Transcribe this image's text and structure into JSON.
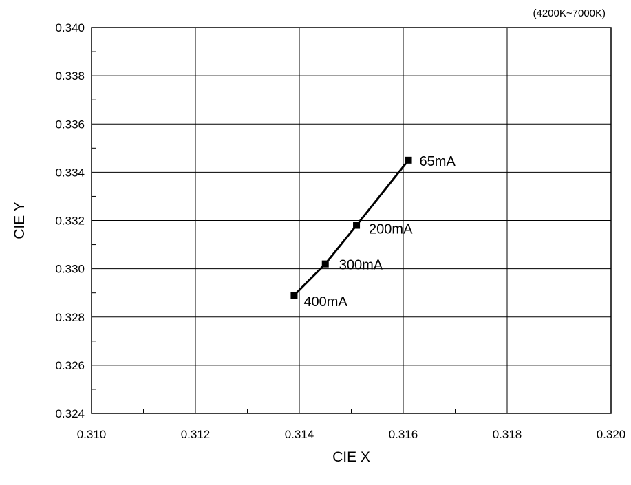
{
  "chart_data": {
    "type": "line",
    "subtitle": "(4200K~7000K)",
    "xlabel": "CIE X",
    "ylabel": "CIE Y",
    "xlim": [
      0.31,
      0.32
    ],
    "ylim": [
      0.324,
      0.34
    ],
    "xticks": [
      "0.310",
      "0.312",
      "0.314",
      "0.316",
      "0.318",
      "0.320"
    ],
    "yticks": [
      "0.324",
      "0.326",
      "0.328",
      "0.330",
      "0.332",
      "0.334",
      "0.336",
      "0.338",
      "0.340"
    ],
    "grid": true,
    "series": [
      {
        "color": "#000000",
        "points": [
          {
            "x": 0.3139,
            "y": 0.3289,
            "label": "400mA"
          },
          {
            "x": 0.3145,
            "y": 0.3302,
            "label": "300mA"
          },
          {
            "x": 0.3151,
            "y": 0.3318,
            "label": "200mA"
          },
          {
            "x": 0.3161,
            "y": 0.3345,
            "label": "65mA"
          }
        ]
      }
    ]
  }
}
